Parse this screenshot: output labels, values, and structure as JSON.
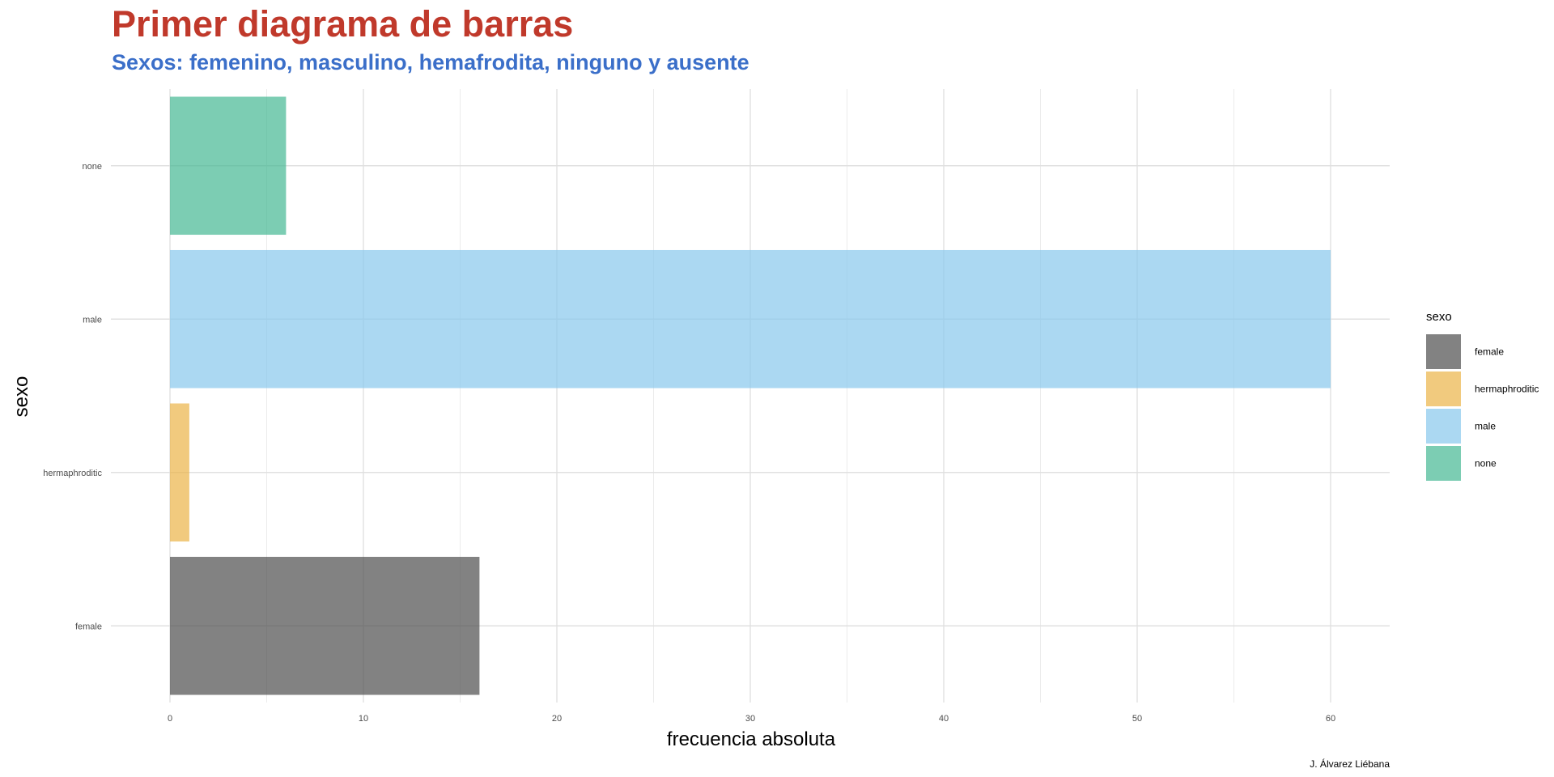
{
  "chart_data": {
    "type": "bar",
    "orientation": "horizontal",
    "title": "Primer diagrama de barras",
    "subtitle": "Sexos: femenino, masculino, hemafrodita, ninguno y ausente",
    "xlabel": "frecuencia absoluta",
    "ylabel": "sexo",
    "categories": [
      "female",
      "hermaphroditic",
      "male",
      "none"
    ],
    "values": [
      16,
      1,
      60,
      6
    ],
    "colors": [
      "#4D4D4D",
      "#EBB447",
      "#87C7EC",
      "#44B893"
    ],
    "bar_opacity": 0.7,
    "xlim": [
      0,
      63
    ],
    "xticks": [
      0,
      10,
      20,
      30,
      40,
      50,
      60
    ],
    "grid": true,
    "legend": {
      "title": "sexo",
      "position": "right",
      "items": [
        "female",
        "hermaphroditic",
        "male",
        "none"
      ]
    },
    "caption": "J. Álvarez Liébana"
  }
}
